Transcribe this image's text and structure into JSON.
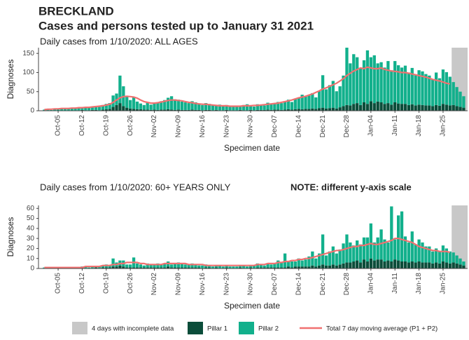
{
  "title": "BRECKLAND",
  "subtitle": "Cases and persons tested up to January 31 2021",
  "chart_data": [
    {
      "type": "bar",
      "stacked": true,
      "title": "Daily cases from 1/10/2020: ALL AGES",
      "ylabel": "Diagnoses",
      "xlabel": "Specimen date",
      "incomplete_days": 4,
      "incomplete_label": "4 days with incomplete data",
      "incomplete_color": "#c8c8c8",
      "categories": [
        null,
        null,
        null,
        null,
        "Oct-05",
        null,
        null,
        null,
        null,
        null,
        null,
        "Oct-12",
        null,
        null,
        null,
        null,
        null,
        null,
        "Oct-19",
        null,
        null,
        null,
        null,
        null,
        null,
        "Oct-26",
        null,
        null,
        null,
        null,
        null,
        null,
        "Nov-02",
        null,
        null,
        null,
        null,
        null,
        null,
        "Nov-09",
        null,
        null,
        null,
        null,
        null,
        null,
        "Nov-16",
        null,
        null,
        null,
        null,
        null,
        null,
        "Nov-23",
        null,
        null,
        null,
        null,
        null,
        null,
        "Nov-30",
        null,
        null,
        null,
        null,
        null,
        null,
        "Dec-07",
        null,
        null,
        null,
        null,
        null,
        null,
        "Dec-14",
        null,
        null,
        null,
        null,
        null,
        null,
        "Dec-21",
        null,
        null,
        null,
        null,
        null,
        null,
        "Dec-28",
        null,
        null,
        null,
        null,
        null,
        null,
        "Jan-04",
        null,
        null,
        null,
        null,
        null,
        null,
        "Jan-11",
        null,
        null,
        null,
        null,
        null,
        null,
        "Jan-18",
        null,
        null,
        null,
        null,
        null,
        null,
        "Jan-25",
        null,
        null,
        null,
        null,
        null,
        null
      ],
      "ylim": [
        0,
        165
      ],
      "yticks": [
        0,
        50,
        100,
        150
      ],
      "series": [
        {
          "name": "Pillar 1",
          "color": "#0b4d3a",
          "values": [
            0,
            1,
            0,
            1,
            0,
            1,
            1,
            1,
            0,
            1,
            1,
            2,
            1,
            1,
            2,
            2,
            1,
            3,
            4,
            5,
            10,
            15,
            20,
            12,
            8,
            6,
            5,
            4,
            4,
            3,
            3,
            2,
            3,
            2,
            3,
            3,
            4,
            3,
            2,
            3,
            2,
            2,
            2,
            3,
            2,
            2,
            1,
            2,
            2,
            1,
            2,
            1,
            1,
            2,
            1,
            1,
            1,
            2,
            1,
            1,
            2,
            1,
            2,
            2,
            2,
            3,
            2,
            3,
            3,
            2,
            3,
            4,
            3,
            4,
            5,
            4,
            5,
            5,
            6,
            5,
            7,
            8,
            6,
            7,
            8,
            6,
            9,
            12,
            15,
            14,
            18,
            20,
            15,
            22,
            18,
            25,
            20,
            24,
            22,
            18,
            20,
            16,
            22,
            19,
            18,
            18,
            15,
            17,
            14,
            16,
            15,
            14,
            14,
            12,
            15,
            13,
            18,
            16,
            14,
            15,
            12,
            10,
            8
          ]
        },
        {
          "name": "Pillar 2",
          "color": "#12b08c",
          "values": [
            3,
            3,
            2,
            4,
            4,
            5,
            4,
            5,
            6,
            5,
            7,
            6,
            8,
            9,
            8,
            10,
            9,
            12,
            14,
            15,
            30,
            30,
            72,
            52,
            28,
            22,
            30,
            20,
            15,
            12,
            18,
            14,
            16,
            20,
            22,
            25,
            30,
            35,
            28,
            26,
            22,
            20,
            18,
            22,
            20,
            15,
            14,
            18,
            16,
            14,
            12,
            15,
            10,
            13,
            12,
            11,
            12,
            10,
            14,
            16,
            12,
            10,
            15,
            14,
            12,
            18,
            16,
            15,
            20,
            18,
            22,
            25,
            20,
            28,
            30,
            38,
            32,
            35,
            40,
            30,
            45,
            85,
            50,
            60,
            70,
            45,
            55,
            80,
            150,
            110,
            130,
            120,
            95,
            110,
            140,
            115,
            125,
            100,
            105,
            95,
            110,
            90,
            108,
            100,
            95,
            100,
            85,
            95,
            80,
            90,
            88,
            82,
            78,
            70,
            85,
            72,
            90,
            85,
            75,
            60,
            50,
            40,
            30
          ]
        },
        {
          "name": "Total 7 day moving average (P1 + P2)",
          "type": "line",
          "color": "#f07070",
          "values": [
            3,
            4,
            4,
            5,
            5,
            6,
            6,
            6,
            7,
            7,
            8,
            8,
            9,
            9,
            10,
            11,
            12,
            13,
            15,
            17,
            22,
            28,
            34,
            37,
            38,
            37,
            36,
            33,
            28,
            24,
            22,
            20,
            20,
            21,
            23,
            25,
            27,
            28,
            28,
            27,
            26,
            24,
            22,
            21,
            19,
            18,
            17,
            17,
            16,
            15,
            14,
            13,
            13,
            13,
            12,
            12,
            12,
            12,
            13,
            13,
            13,
            14,
            14,
            15,
            16,
            17,
            18,
            19,
            20,
            22,
            24,
            26,
            28,
            31,
            34,
            36,
            38,
            41,
            44,
            48,
            52,
            57,
            60,
            64,
            68,
            72,
            78,
            84,
            92,
            98,
            104,
            108,
            112,
            110,
            114,
            112,
            110,
            110,
            112,
            108,
            106,
            104,
            103,
            102,
            100,
            100,
            98,
            96,
            94,
            92,
            90,
            88,
            85,
            82,
            80,
            78,
            75,
            72,
            70,
            null,
            null,
            null,
            null
          ]
        }
      ]
    },
    {
      "type": "bar",
      "stacked": true,
      "title": "Daily cases from 1/10/2020: 60+ YEARS ONLY",
      "note": "NOTE: different y-axis scale",
      "ylabel": "Diagnoses",
      "xlabel": "Specimen date",
      "incomplete_days": 4,
      "incomplete_color": "#c8c8c8",
      "categories": [
        null,
        null,
        null,
        null,
        "Oct-05",
        null,
        null,
        null,
        null,
        null,
        null,
        "Oct-12",
        null,
        null,
        null,
        null,
        null,
        null,
        "Oct-19",
        null,
        null,
        null,
        null,
        null,
        null,
        "Oct-26",
        null,
        null,
        null,
        null,
        null,
        null,
        "Nov-02",
        null,
        null,
        null,
        null,
        null,
        null,
        "Nov-09",
        null,
        null,
        null,
        null,
        null,
        null,
        "Nov-16",
        null,
        null,
        null,
        null,
        null,
        null,
        "Nov-23",
        null,
        null,
        null,
        null,
        null,
        null,
        "Nov-30",
        null,
        null,
        null,
        null,
        null,
        null,
        "Dec-07",
        null,
        null,
        null,
        null,
        null,
        null,
        "Dec-14",
        null,
        null,
        null,
        null,
        null,
        null,
        "Dec-21",
        null,
        null,
        null,
        null,
        null,
        null,
        "Dec-28",
        null,
        null,
        null,
        null,
        null,
        null,
        "Jan-04",
        null,
        null,
        null,
        null,
        null,
        null,
        "Jan-11",
        null,
        null,
        null,
        null,
        null,
        null,
        "Jan-18",
        null,
        null,
        null,
        null,
        null,
        null,
        "Jan-25",
        null,
        null,
        null,
        null,
        null,
        null
      ],
      "ylim": [
        0,
        63
      ],
      "yticks": [
        0,
        10,
        20,
        30,
        40,
        50,
        60
      ],
      "series": [
        {
          "name": "Pillar 1",
          "color": "#0b4d3a",
          "values": [
            0,
            0,
            0,
            0,
            0,
            0,
            0,
            0,
            0,
            0,
            0,
            1,
            0,
            0,
            0,
            1,
            0,
            1,
            1,
            1,
            2,
            2,
            3,
            2,
            1,
            1,
            1,
            1,
            1,
            1,
            1,
            1,
            1,
            1,
            1,
            1,
            2,
            1,
            1,
            1,
            1,
            1,
            1,
            1,
            1,
            1,
            0,
            1,
            1,
            0,
            1,
            0,
            0,
            1,
            0,
            0,
            0,
            1,
            0,
            0,
            1,
            0,
            1,
            1,
            1,
            1,
            1,
            1,
            1,
            1,
            1,
            2,
            1,
            2,
            2,
            2,
            2,
            2,
            3,
            2,
            3,
            4,
            3,
            3,
            4,
            3,
            4,
            5,
            6,
            6,
            7,
            8,
            6,
            9,
            7,
            10,
            8,
            9,
            9,
            7,
            8,
            7,
            9,
            8,
            7,
            7,
            6,
            7,
            6,
            7,
            6,
            6,
            6,
            5,
            6,
            5,
            7,
            6,
            5,
            6,
            5,
            4,
            3
          ]
        },
        {
          "name": "Pillar 2",
          "color": "#12b08c",
          "values": [
            1,
            0,
            1,
            1,
            0,
            1,
            1,
            1,
            1,
            0,
            1,
            1,
            2,
            1,
            2,
            1,
            2,
            2,
            3,
            2,
            8,
            4,
            5,
            6,
            3,
            3,
            10,
            4,
            3,
            2,
            4,
            3,
            3,
            4,
            3,
            4,
            5,
            3,
            4,
            5,
            4,
            3,
            3,
            4,
            3,
            2,
            3,
            3,
            2,
            2,
            2,
            3,
            2,
            2,
            2,
            2,
            2,
            2,
            3,
            2,
            2,
            3,
            4,
            3,
            2,
            4,
            3,
            4,
            7,
            5,
            14,
            5,
            6,
            5,
            8,
            6,
            7,
            10,
            14,
            8,
            12,
            30,
            10,
            14,
            18,
            12,
            15,
            20,
            28,
            20,
            16,
            20,
            18,
            22,
            24,
            35,
            18,
            22,
            30,
            22,
            18,
            55,
            20,
            45,
            50,
            25,
            20,
            30,
            18,
            22,
            20,
            16,
            16,
            12,
            14,
            12,
            16,
            14,
            12,
            10,
            8,
            6,
            4
          ]
        },
        {
          "name": "Total 7 day moving average (P1 + P2)",
          "type": "line",
          "color": "#f07070",
          "values": [
            1,
            1,
            1,
            1,
            1,
            1,
            1,
            1,
            1,
            1,
            1,
            1,
            2,
            2,
            2,
            2,
            2,
            3,
            3,
            3,
            4,
            4,
            5,
            5,
            6,
            6,
            6,
            6,
            5,
            5,
            4,
            4,
            4,
            4,
            4,
            5,
            5,
            5,
            5,
            5,
            5,
            5,
            4,
            4,
            4,
            4,
            4,
            3,
            3,
            3,
            3,
            3,
            3,
            3,
            3,
            3,
            3,
            3,
            3,
            3,
            3,
            3,
            4,
            4,
            4,
            5,
            5,
            5,
            6,
            6,
            7,
            7,
            8,
            8,
            9,
            9,
            10,
            10,
            11,
            12,
            13,
            14,
            15,
            16,
            17,
            18,
            18,
            19,
            20,
            21,
            22,
            22,
            23,
            23,
            24,
            25,
            24,
            24,
            25,
            26,
            27,
            28,
            30,
            30,
            29,
            28,
            27,
            26,
            24,
            22,
            21,
            20,
            19,
            18,
            18,
            17,
            17,
            17,
            16,
            null,
            null,
            null,
            null
          ]
        }
      ]
    }
  ]
}
